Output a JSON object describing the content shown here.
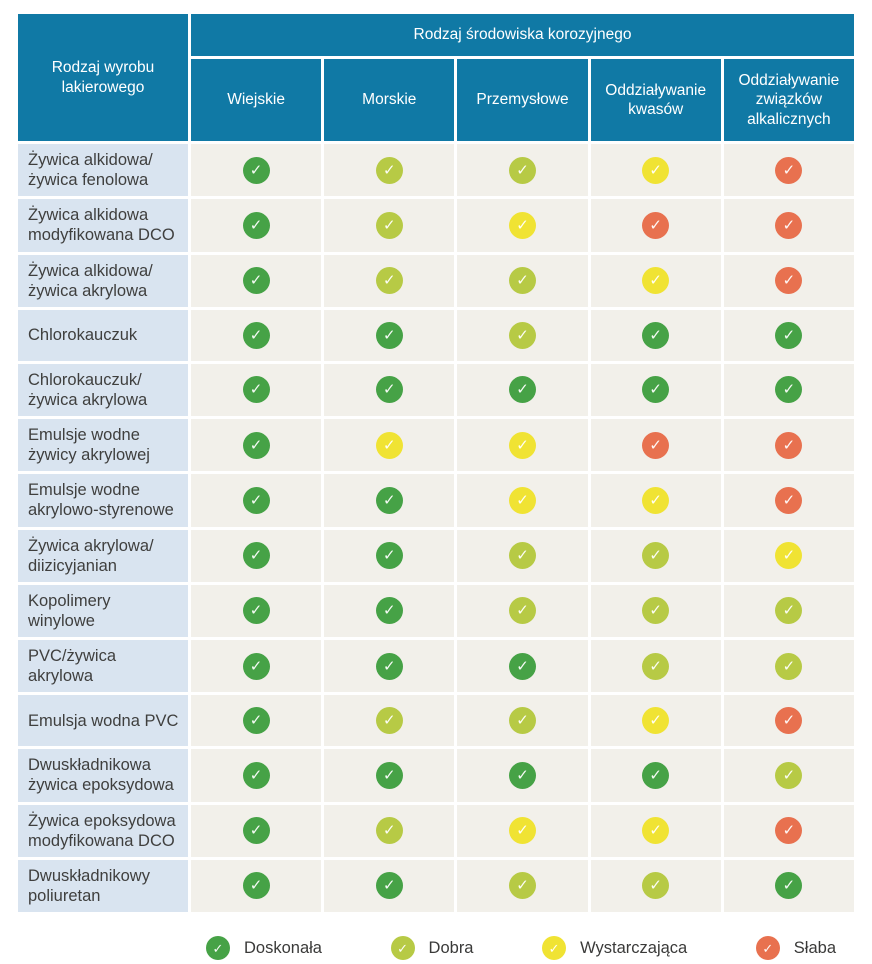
{
  "chart_data": {
    "type": "table",
    "row_header": "Rodzaj wyrobu lakierowego",
    "column_group_header": "Rodzaj środowiska korozyjnego",
    "columns": [
      "Wiejskie",
      "Morskie",
      "Przemysłowe",
      "Oddziaływanie kwasów",
      "Oddziaływanie związków alkalicznych"
    ],
    "rating_scale": [
      {
        "id": "doskonala",
        "label": "Doskonała",
        "color": "#46a246"
      },
      {
        "id": "dobra",
        "label": "Dobra",
        "color": "#b7ca45"
      },
      {
        "id": "wystarczajaca",
        "label": "Wystarczająca",
        "color": "#f0e333"
      },
      {
        "id": "slaba",
        "label": "Słaba",
        "color": "#e8714f"
      }
    ],
    "rows": [
      {
        "label": "Żywica alkidowa/\nżywica fenolowa",
        "values": [
          "doskonala",
          "dobra",
          "dobra",
          "wystarczajaca",
          "slaba"
        ]
      },
      {
        "label": "Żywica alkidowa\nmodyfikowana DCO",
        "values": [
          "doskonala",
          "dobra",
          "wystarczajaca",
          "slaba",
          "slaba"
        ]
      },
      {
        "label": "Żywica alkidowa/\nżywica akrylowa",
        "values": [
          "doskonala",
          "dobra",
          "dobra",
          "wystarczajaca",
          "slaba"
        ]
      },
      {
        "label": "Chlorokauczuk",
        "values": [
          "doskonala",
          "doskonala",
          "dobra",
          "doskonala",
          "doskonala"
        ]
      },
      {
        "label": "Chlorokauczuk/\nżywica akrylowa",
        "values": [
          "doskonala",
          "doskonala",
          "doskonala",
          "doskonala",
          "doskonala"
        ]
      },
      {
        "label": "Emulsje wodne\nżywicy akrylowej",
        "values": [
          "doskonala",
          "wystarczajaca",
          "wystarczajaca",
          "slaba",
          "slaba"
        ]
      },
      {
        "label": "Emulsje wodne\nakrylowo-styrenowe",
        "values": [
          "doskonala",
          "doskonala",
          "wystarczajaca",
          "wystarczajaca",
          "slaba"
        ]
      },
      {
        "label": "Żywica akrylowa/\ndiizicyjanian",
        "values": [
          "doskonala",
          "doskonala",
          "dobra",
          "dobra",
          "wystarczajaca"
        ]
      },
      {
        "label": "Kopolimery\nwinylowe",
        "values": [
          "doskonala",
          "doskonala",
          "dobra",
          "dobra",
          "dobra"
        ]
      },
      {
        "label": "PVC/żywica\nakrylowa",
        "values": [
          "doskonala",
          "doskonala",
          "doskonala",
          "dobra",
          "dobra"
        ]
      },
      {
        "label": "Emulsja wodna PVC",
        "values": [
          "doskonala",
          "dobra",
          "dobra",
          "wystarczajaca",
          "slaba"
        ]
      },
      {
        "label": "Dwuskładnikowa\nżywica epoksydowa",
        "values": [
          "doskonala",
          "doskonala",
          "doskonala",
          "doskonala",
          "dobra"
        ]
      },
      {
        "label": "Żywica epoksydowa\nmodyfikowana DCO",
        "values": [
          "doskonala",
          "dobra",
          "wystarczajaca",
          "wystarczajaca",
          "slaba"
        ]
      },
      {
        "label": "Dwuskładnikowy\npoliuretan",
        "values": [
          "doskonala",
          "doskonala",
          "dobra",
          "dobra",
          "doskonala"
        ]
      }
    ]
  },
  "icons": {
    "check": "✓"
  },
  "colors": {
    "header_bg": "#1079a5",
    "header_text": "#ffffff",
    "row_label_bg": "#d9e4f0",
    "cell_bg": "#f2f0ea",
    "page_bg": "#ffffff"
  }
}
